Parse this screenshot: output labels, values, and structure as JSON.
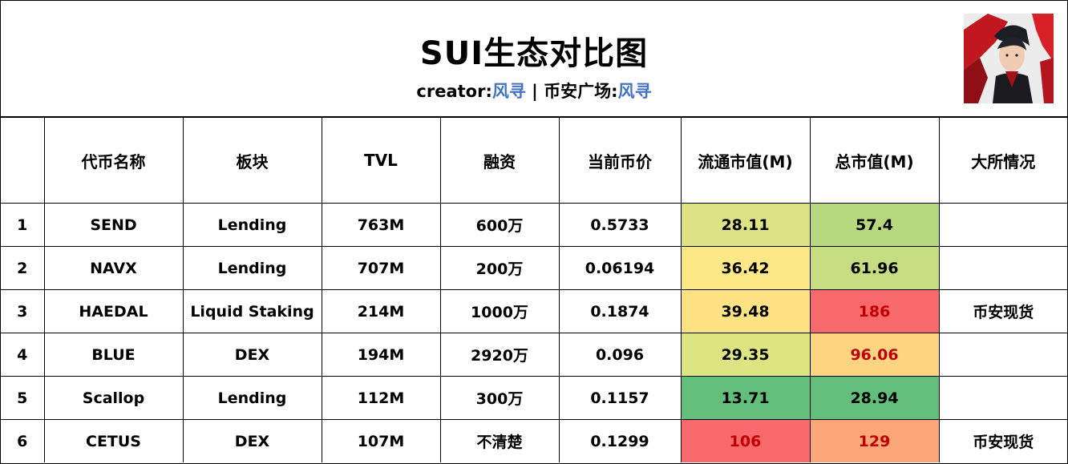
{
  "header": {
    "title": "SUI生态对比图",
    "creator_label": "creator:",
    "creator_name": "风寻",
    "separator": " | ",
    "square_label": "币安广场:",
    "square_name": "风寻"
  },
  "avatar": {
    "icon": "dragon-warrior-avatar-icon"
  },
  "colors": {
    "link": "#4472c4",
    "red_text": "#c00000",
    "green": "#63be7b",
    "yellow": "#fee283",
    "red": "#f8696b"
  },
  "table": {
    "headers": [
      "",
      "代币名称",
      "板块",
      "TVL",
      "融资",
      "当前币价",
      "流通市值(M)",
      "总市值(M)",
      "大所情况"
    ],
    "rows": [
      {
        "idx": "1",
        "name": "SEND",
        "sector": "Lending",
        "tvl": "763M",
        "funding": "600万",
        "price": "0.5733",
        "circ_mcap": "28.11",
        "total_mcap": "57.4",
        "exchange": ""
      },
      {
        "idx": "2",
        "name": "NAVX",
        "sector": "Lending",
        "tvl": "707M",
        "funding": "200万",
        "price": "0.06194",
        "circ_mcap": "36.42",
        "total_mcap": "61.96",
        "exchange": ""
      },
      {
        "idx": "3",
        "name": "HAEDAL",
        "sector": "Liquid Staking",
        "tvl": "214M",
        "funding": "1000万",
        "price": "0.1874",
        "circ_mcap": "39.48",
        "total_mcap": "186",
        "exchange": "币安现货"
      },
      {
        "idx": "4",
        "name": "BLUE",
        "sector": "DEX",
        "tvl": "194M",
        "funding": "2920万",
        "price": "0.096",
        "circ_mcap": "29.35",
        "total_mcap": "96.06",
        "exchange": ""
      },
      {
        "idx": "5",
        "name": "Scallop",
        "sector": "Lending",
        "tvl": "112M",
        "funding": "300万",
        "price": "0.1157",
        "circ_mcap": "13.71",
        "total_mcap": "28.94",
        "exchange": ""
      },
      {
        "idx": "6",
        "name": "CETUS",
        "sector": "DEX",
        "tvl": "107M",
        "funding": "不清楚",
        "price": "0.1299",
        "circ_mcap": "106",
        "total_mcap": "129",
        "exchange": "币安现货"
      }
    ]
  }
}
